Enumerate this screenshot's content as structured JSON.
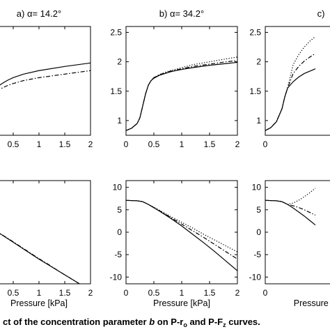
{
  "caption": {
    "pre": "ct of the concentration parameter ",
    "param": "b",
    "mid1": " on P-r",
    "sub1": "o",
    "mid2": " and P-F",
    "sub2": "z",
    "post": " curves."
  },
  "chart_data": [
    {
      "type": "line",
      "title": "a) α= 14.2°",
      "xlabel": "",
      "xlim": [
        0,
        2
      ],
      "ylim": [
        0.75,
        2.6
      ],
      "xticks": [
        "0.5",
        "1",
        "1.5",
        "2"
      ],
      "yticks": [],
      "series": [
        {
          "style": "solid",
          "x": [
            0,
            0.05,
            0.1,
            0.2,
            0.3,
            0.4,
            0.5,
            0.7,
            1.0,
            1.5,
            2.0
          ],
          "y": [
            1.25,
            1.4,
            1.49,
            1.58,
            1.64,
            1.69,
            1.73,
            1.79,
            1.85,
            1.92,
            1.98
          ]
        },
        {
          "style": "dashdot",
          "x": [
            0,
            0.05,
            0.1,
            0.2,
            0.3,
            0.4,
            0.5,
            0.7,
            1.0,
            1.5,
            2.0
          ],
          "y": [
            1.25,
            1.36,
            1.44,
            1.52,
            1.56,
            1.6,
            1.63,
            1.68,
            1.73,
            1.79,
            1.85
          ]
        }
      ]
    },
    {
      "type": "line",
      "title": "b) α= 34.2°",
      "xlabel": "",
      "xlim": [
        0,
        2
      ],
      "ylim": [
        0.75,
        2.6
      ],
      "xticks": [
        "0",
        "0.5",
        "1",
        "1.5",
        "2"
      ],
      "yticks": [
        "1",
        "1.5",
        "2",
        "2.5"
      ],
      "series": [
        {
          "style": "solid",
          "x": [
            0,
            0.1,
            0.2,
            0.25,
            0.3,
            0.35,
            0.4,
            0.45,
            0.5,
            0.6,
            0.7,
            0.8,
            1.0,
            1.2,
            1.5,
            1.8,
            2.0
          ],
          "y": [
            0.83,
            0.87,
            0.95,
            1.05,
            1.25,
            1.45,
            1.6,
            1.68,
            1.72,
            1.77,
            1.8,
            1.83,
            1.87,
            1.9,
            1.94,
            1.97,
            1.99
          ]
        },
        {
          "style": "dashdot",
          "x": [
            0,
            0.1,
            0.2,
            0.25,
            0.3,
            0.35,
            0.4,
            0.45,
            0.5,
            0.6,
            0.7,
            0.8,
            1.0,
            1.2,
            1.5,
            1.8,
            2.0
          ],
          "y": [
            0.83,
            0.87,
            0.95,
            1.05,
            1.25,
            1.45,
            1.6,
            1.68,
            1.73,
            1.78,
            1.81,
            1.84,
            1.88,
            1.92,
            1.96,
            2.0,
            2.02
          ]
        },
        {
          "style": "dotted",
          "x": [
            0,
            0.1,
            0.2,
            0.25,
            0.3,
            0.35,
            0.4,
            0.45,
            0.5,
            0.6,
            0.7,
            0.8,
            1.0,
            1.2,
            1.5,
            1.8,
            2.0
          ],
          "y": [
            0.83,
            0.87,
            0.95,
            1.05,
            1.25,
            1.45,
            1.6,
            1.68,
            1.73,
            1.78,
            1.82,
            1.85,
            1.9,
            1.95,
            2.0,
            2.05,
            2.08
          ]
        }
      ]
    },
    {
      "type": "line",
      "title": "c)",
      "xlabel": "",
      "xlim": [
        0,
        2
      ],
      "ylim": [
        0.75,
        2.6
      ],
      "xticks": [
        "0"
      ],
      "yticks": [
        "1",
        "1.5",
        "2",
        "2.5"
      ],
      "series": [
        {
          "style": "solid",
          "x": [
            0,
            0.1,
            0.2,
            0.3,
            0.35,
            0.4,
            0.5,
            0.6,
            0.7,
            0.8,
            0.9
          ],
          "y": [
            0.83,
            0.88,
            0.98,
            1.2,
            1.4,
            1.55,
            1.66,
            1.74,
            1.8,
            1.84,
            1.88
          ]
        },
        {
          "style": "dashdot",
          "x": [
            0,
            0.1,
            0.2,
            0.3,
            0.35,
            0.4,
            0.5,
            0.6,
            0.7,
            0.8,
            0.9
          ],
          "y": [
            0.83,
            0.88,
            0.98,
            1.2,
            1.4,
            1.55,
            1.8,
            1.92,
            2.01,
            2.08,
            2.14
          ]
        },
        {
          "style": "dotted",
          "x": [
            0,
            0.1,
            0.2,
            0.3,
            0.35,
            0.4,
            0.5,
            0.6,
            0.7,
            0.8,
            0.9
          ],
          "y": [
            0.83,
            0.88,
            0.98,
            1.2,
            1.4,
            1.55,
            1.95,
            2.12,
            2.25,
            2.35,
            2.43
          ]
        }
      ]
    },
    {
      "type": "line",
      "title": "",
      "xlabel": "Pressure [kPa]",
      "xlim": [
        0,
        2
      ],
      "ylim": [
        -11.5,
        11.5
      ],
      "xticks": [
        "0.5",
        "1",
        "1.5",
        "2"
      ],
      "yticks": [],
      "series": [
        {
          "style": "solid",
          "x": [
            0,
            0.2,
            0.4,
            0.6,
            0.8,
            1.0,
            1.2,
            1.4,
            1.6,
            1.8,
            2.0
          ],
          "y": [
            1.3,
            0.0,
            -1.5,
            -3.0,
            -4.5,
            -6.0,
            -7.4,
            -8.8,
            -10.2,
            -11.6,
            -13.0
          ]
        },
        {
          "style": "dashdot",
          "x": [
            0,
            0.2,
            0.4,
            0.6,
            0.8,
            1.0,
            1.2,
            1.4,
            1.6,
            1.8,
            2.0
          ],
          "y": [
            1.3,
            0.0,
            -1.4,
            -2.9,
            -4.4,
            -5.9,
            -7.3,
            -8.8,
            -10.2,
            -11.6,
            -13.0
          ]
        }
      ]
    },
    {
      "type": "line",
      "title": "",
      "xlabel": "Pressure [kPa]",
      "xlim": [
        0,
        2
      ],
      "ylim": [
        -11.5,
        11.5
      ],
      "xticks": [
        "0",
        "0.5",
        "1",
        "1.5",
        "2"
      ],
      "yticks": [
        "-10",
        "-5",
        "0",
        "5",
        "10"
      ],
      "series": [
        {
          "style": "solid",
          "x": [
            0,
            0.2,
            0.3,
            0.4,
            0.6,
            0.8,
            1.0,
            1.2,
            1.4,
            1.6,
            1.8,
            2.0
          ],
          "y": [
            7.1,
            7.0,
            6.8,
            6.2,
            4.7,
            3.1,
            1.4,
            -0.5,
            -2.4,
            -4.4,
            -6.5,
            -8.6
          ]
        },
        {
          "style": "dashdot",
          "x": [
            0,
            0.2,
            0.3,
            0.4,
            0.6,
            0.8,
            1.0,
            1.2,
            1.4,
            1.6,
            1.8,
            2.0
          ],
          "y": [
            7.1,
            7.0,
            6.8,
            6.2,
            4.8,
            3.3,
            1.8,
            0.3,
            -1.2,
            -2.8,
            -4.4,
            -6.0
          ]
        },
        {
          "style": "dotted",
          "x": [
            0,
            0.2,
            0.3,
            0.4,
            0.6,
            0.8,
            1.0,
            1.2,
            1.4,
            1.6,
            1.8,
            2.0
          ],
          "y": [
            7.1,
            7.0,
            6.8,
            6.2,
            4.9,
            3.5,
            2.2,
            0.9,
            -0.5,
            -1.8,
            -3.1,
            -4.4
          ]
        }
      ]
    },
    {
      "type": "line",
      "title": "",
      "xlabel": "Pressure [kPa",
      "xlim": [
        0,
        2
      ],
      "ylim": [
        -11.5,
        11.5
      ],
      "xticks": [
        "0"
      ],
      "yticks": [
        "-10",
        "-5",
        "0",
        "5",
        "10"
      ],
      "series": [
        {
          "style": "solid",
          "x": [
            0,
            0.2,
            0.3,
            0.4,
            0.5,
            0.6,
            0.7,
            0.8,
            0.9
          ],
          "y": [
            7.1,
            7.0,
            6.8,
            6.2,
            5.4,
            4.5,
            3.6,
            2.6,
            1.6
          ]
        },
        {
          "style": "dashdot",
          "x": [
            0,
            0.2,
            0.3,
            0.4,
            0.5,
            0.6,
            0.7,
            0.8,
            0.9
          ],
          "y": [
            7.1,
            7.0,
            6.8,
            6.2,
            5.9,
            5.5,
            5.0,
            4.4,
            3.8
          ]
        },
        {
          "style": "dotted",
          "x": [
            0,
            0.2,
            0.3,
            0.4,
            0.5,
            0.6,
            0.7,
            0.8,
            0.9
          ],
          "y": [
            7.1,
            7.0,
            6.8,
            6.2,
            6.5,
            7.1,
            7.9,
            8.8,
            9.8
          ]
        }
      ]
    }
  ]
}
